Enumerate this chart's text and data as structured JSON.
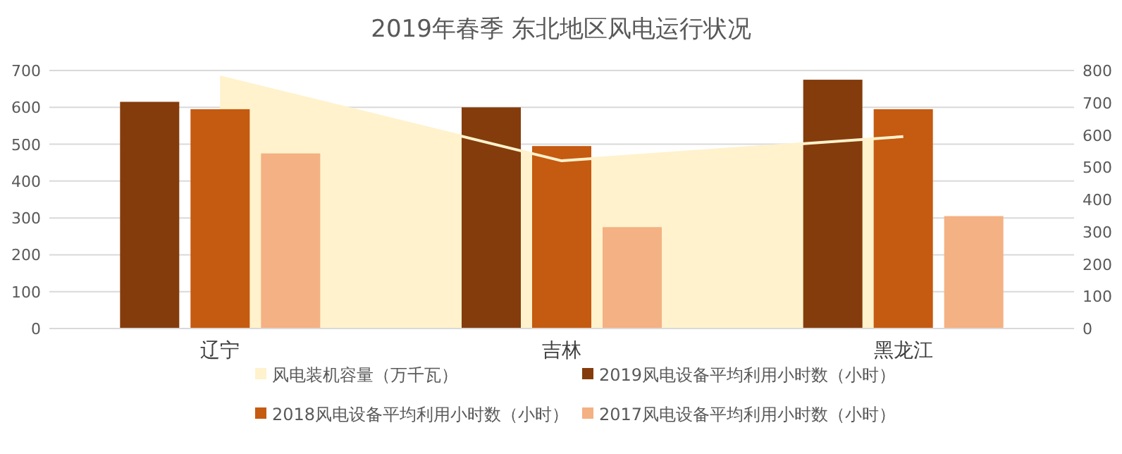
{
  "chart_data": {
    "type": "bar",
    "title": "2019年春季  东北地区风电运行状况",
    "categories": [
      "辽宁",
      "吉林",
      "黑龙江"
    ],
    "series": [
      {
        "name": "风电装机容量（万千瓦）",
        "type": "area",
        "axis": "y2",
        "color": "#fff2cc",
        "values": [
          780,
          520,
          595
        ]
      },
      {
        "name": "2019风电设备平均利用小时数（小时）",
        "color": "#843c0c",
        "values": [
          615,
          600,
          675
        ]
      },
      {
        "name": "2018风电设备平均利用小时数（小时）",
        "color": "#c55a11",
        "values": [
          595,
          495,
          595
        ]
      },
      {
        "name": "2017风电设备平均利用小时数（小时）",
        "color": "#f4b183",
        "values": [
          475,
          275,
          305
        ]
      }
    ],
    "ylim": [
      0,
      700
    ],
    "yticks": [
      0,
      100,
      200,
      300,
      400,
      500,
      600,
      700
    ],
    "y2lim": [
      0,
      800
    ],
    "y2ticks": [
      0,
      100,
      200,
      300,
      400,
      500,
      600,
      700,
      800
    ],
    "grid": "y",
    "legend": "bottom"
  }
}
